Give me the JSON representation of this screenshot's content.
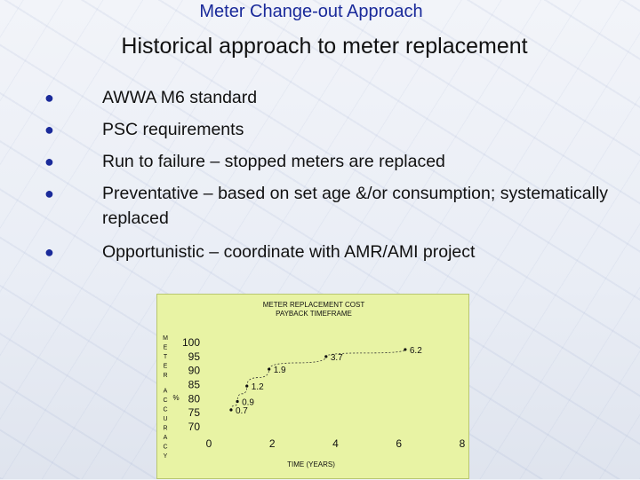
{
  "header": {
    "text": "Meter Change-out Approach"
  },
  "title": {
    "text": "Historical approach to meter replacement"
  },
  "bullets": [
    {
      "text": "AWWA M6 standard"
    },
    {
      "text": "PSC requirements"
    },
    {
      "text": "Run to failure – stopped meters are replaced"
    },
    {
      "text": "Preventative – based on set age &/or consumption; systematically replaced"
    },
    {
      "text": "Opportunistic – coordinate with AMR/AMI project"
    }
  ],
  "bullet_icon": "drop-bullet-icon",
  "accent_color": "#1a2a9a",
  "chart_data": {
    "type": "scatter",
    "title": "METER REPLACEMENT COST PAYBACK TIMEFRAME",
    "xlabel": "TIME (YEARS)",
    "ylabel": "METER ACCURACY",
    "yunit": "%",
    "xlim": [
      0,
      8
    ],
    "ylim": [
      70,
      100
    ],
    "xticks": [
      0,
      2,
      4,
      6,
      8
    ],
    "yticks": [
      100,
      95,
      90,
      85,
      80,
      75,
      70
    ],
    "points": [
      {
        "x": 0.7,
        "y": 76,
        "label": "0.7"
      },
      {
        "x": 0.9,
        "y": 79,
        "label": "0.9"
      },
      {
        "x": 1.2,
        "y": 84.5,
        "label": "1.2"
      },
      {
        "x": 1.9,
        "y": 90.5,
        "label": "1.9"
      },
      {
        "x": 3.7,
        "y": 95,
        "label": "3.7"
      },
      {
        "x": 6.2,
        "y": 97.5,
        "label": "6.2"
      }
    ],
    "trendline": true,
    "background_color": "#e8f3a4"
  }
}
